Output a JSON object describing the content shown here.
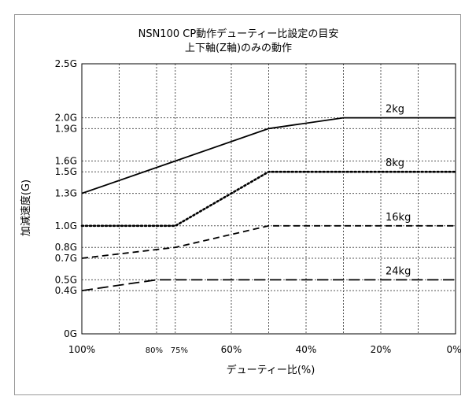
{
  "chart_data": {
    "type": "line",
    "title": "NSN100 CP動作デューティー比設定の目安",
    "subtitle": "上下軸(Z軸)のみの動作",
    "xlabel": "デューティー比(%)",
    "ylabel": "加減速度(G)",
    "xlim": [
      100,
      0
    ],
    "ylim": [
      0,
      2.5
    ],
    "x_ticks": [
      {
        "value": 100,
        "label": "100%",
        "small": false
      },
      {
        "value": 80,
        "label": "80%",
        "small": true
      },
      {
        "value": 75,
        "label": "75%",
        "small": true
      },
      {
        "value": 60,
        "label": "60%",
        "small": false
      },
      {
        "value": 40,
        "label": "40%",
        "small": false
      },
      {
        "value": 20,
        "label": "20%",
        "small": false
      },
      {
        "value": 0,
        "label": "0%",
        "small": false
      }
    ],
    "x_grid": [
      90,
      80,
      75,
      60,
      50,
      40,
      30,
      20,
      10
    ],
    "y_ticks": [
      {
        "value": 2.5,
        "label": "2.5G"
      },
      {
        "value": 2.0,
        "label": "2.0G"
      },
      {
        "value": 1.9,
        "label": "1.9G"
      },
      {
        "value": 1.6,
        "label": "1.6G"
      },
      {
        "value": 1.5,
        "label": "1.5G"
      },
      {
        "value": 1.3,
        "label": "1.3G"
      },
      {
        "value": 1.0,
        "label": "1.0G"
      },
      {
        "value": 0.8,
        "label": "0.8G"
      },
      {
        "value": 0.7,
        "label": "0.7G"
      },
      {
        "value": 0.5,
        "label": "0.5G"
      },
      {
        "value": 0.4,
        "label": "0.4G"
      },
      {
        "value": 0,
        "label": "0G"
      }
    ],
    "series": [
      {
        "name": "2kg",
        "style": "solid",
        "color": "#000000",
        "points": [
          [
            100,
            1.3
          ],
          [
            75,
            1.6
          ],
          [
            50,
            1.9
          ],
          [
            30,
            2.0
          ],
          [
            0,
            2.0
          ]
        ]
      },
      {
        "name": "8kg",
        "style": "dotted",
        "color": "#000000",
        "points": [
          [
            100,
            1.0
          ],
          [
            75,
            1.0
          ],
          [
            50,
            1.5
          ],
          [
            0,
            1.5
          ]
        ]
      },
      {
        "name": "16kg",
        "style": "dashed",
        "color": "#000000",
        "points": [
          [
            100,
            0.7
          ],
          [
            75,
            0.8
          ],
          [
            50,
            1.0
          ],
          [
            0,
            1.0
          ]
        ]
      },
      {
        "name": "24kg",
        "style": "longdash",
        "color": "#000000",
        "points": [
          [
            100,
            0.4
          ],
          [
            80,
            0.5
          ],
          [
            0,
            0.5
          ]
        ]
      }
    ]
  }
}
